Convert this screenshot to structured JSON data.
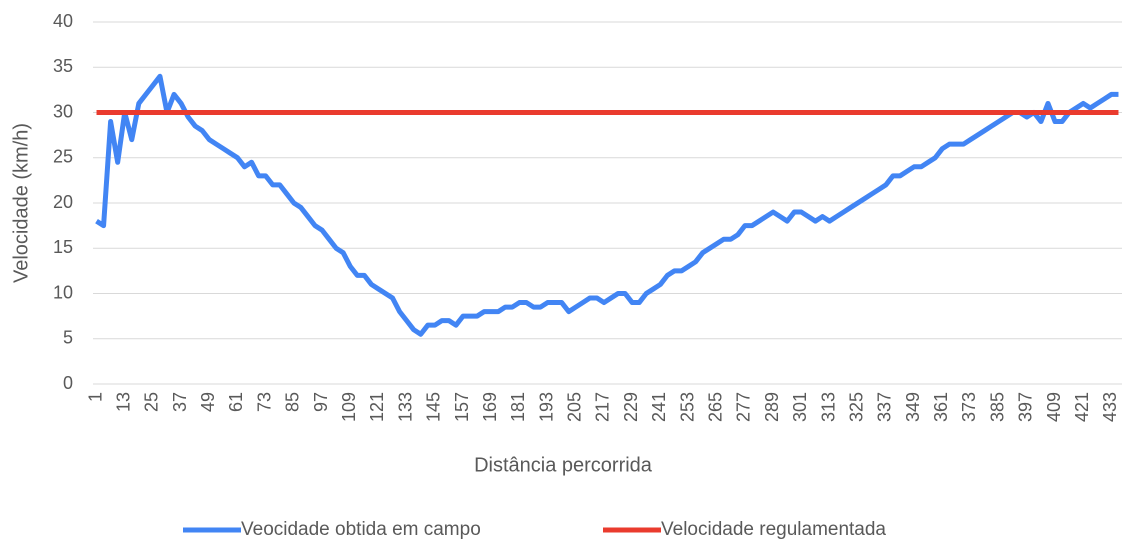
{
  "chart_data": {
    "type": "line",
    "x_label": "Distância percorrida",
    "y_label": "Velocidade (km/h)",
    "categories": [
      "1",
      null,
      null,
      null,
      "13",
      null,
      null,
      null,
      "25",
      null,
      null,
      null,
      "37",
      null,
      null,
      null,
      "49",
      null,
      null,
      null,
      "61",
      null,
      null,
      null,
      "73",
      null,
      null,
      null,
      "85",
      null,
      null,
      null,
      "97",
      null,
      null,
      null,
      "109",
      null,
      null,
      null,
      "121",
      null,
      null,
      null,
      "133",
      null,
      null,
      null,
      "145",
      null,
      null,
      null,
      "157",
      null,
      null,
      null,
      "169",
      null,
      null,
      null,
      "181",
      null,
      null,
      null,
      "193",
      null,
      null,
      null,
      "205",
      null,
      null,
      null,
      "217",
      null,
      null,
      null,
      "229",
      null,
      null,
      null,
      "241",
      null,
      null,
      null,
      "253",
      null,
      null,
      null,
      "265",
      null,
      null,
      null,
      "277",
      null,
      null,
      null,
      "289",
      null,
      null,
      null,
      "301",
      null,
      null,
      null,
      "313",
      null,
      null,
      null,
      "325",
      null,
      null,
      null,
      "337",
      null,
      null,
      null,
      "349",
      null,
      null,
      null,
      "361",
      null,
      null,
      null,
      "373",
      null,
      null,
      null,
      "385",
      null,
      null,
      null,
      "397",
      null,
      null,
      null,
      "409",
      null,
      null,
      null,
      "421",
      null,
      null,
      null,
      "433",
      null
    ],
    "series": [
      {
        "name": "Veocidade obtida em campo",
        "color": "#4285f4",
        "values": [
          18,
          17.5,
          29,
          24.5,
          30,
          27,
          31,
          32,
          33,
          34,
          30,
          32,
          31,
          29.5,
          28.5,
          28,
          27,
          26.5,
          26,
          25.5,
          25,
          24,
          24.5,
          23,
          23,
          22,
          22,
          21,
          20,
          19.5,
          18.5,
          17.5,
          17,
          16,
          15,
          14.5,
          13,
          12,
          12,
          11,
          10.5,
          10,
          9.5,
          8,
          7,
          6,
          5.5,
          6.5,
          6.5,
          7,
          7,
          6.5,
          7.5,
          7.5,
          7.5,
          8,
          8,
          8,
          8.5,
          8.5,
          9,
          9,
          8.5,
          8.5,
          9,
          9,
          9,
          8,
          8.5,
          9,
          9.5,
          9.5,
          9,
          9.5,
          10,
          10,
          9,
          9,
          10,
          10.5,
          11,
          12,
          12.5,
          12.5,
          13,
          13.5,
          14.5,
          15,
          15.5,
          16,
          16,
          16.5,
          17.5,
          17.5,
          18,
          18.5,
          19,
          18.5,
          18,
          19,
          19,
          18.5,
          18,
          18.5,
          18,
          18.5,
          19,
          19.5,
          20,
          20.5,
          21,
          21.5,
          22,
          23,
          23,
          23.5,
          24,
          24,
          24.5,
          25,
          26,
          26.5,
          26.5,
          26.5,
          27,
          27.5,
          28,
          28.5,
          29,
          29.5,
          30,
          30,
          29.5,
          30,
          29,
          31,
          29,
          29,
          30,
          30.5,
          31,
          30.5,
          31,
          31.5,
          32,
          32
        ]
      },
      {
        "name": "Velocidade regulamentada",
        "color": "#ea3b2e",
        "values": [
          30,
          30,
          30,
          30,
          30,
          30,
          30,
          30,
          30,
          30,
          30,
          30,
          30,
          30,
          30,
          30,
          30,
          30,
          30,
          30,
          30,
          30,
          30,
          30,
          30,
          30,
          30,
          30,
          30,
          30,
          30,
          30,
          30,
          30,
          30,
          30,
          30,
          30,
          30,
          30,
          30,
          30,
          30,
          30,
          30,
          30,
          30,
          30,
          30,
          30,
          30,
          30,
          30,
          30,
          30,
          30,
          30,
          30,
          30,
          30,
          30,
          30,
          30,
          30,
          30,
          30,
          30,
          30,
          30,
          30,
          30,
          30,
          30,
          30,
          30,
          30,
          30,
          30,
          30,
          30,
          30,
          30,
          30,
          30,
          30,
          30,
          30,
          30,
          30,
          30,
          30,
          30,
          30,
          30,
          30,
          30,
          30,
          30,
          30,
          30,
          30,
          30,
          30,
          30,
          30,
          30,
          30,
          30,
          30,
          30,
          30,
          30,
          30,
          30,
          30,
          30,
          30,
          30,
          30,
          30,
          30,
          30,
          30,
          30,
          30,
          30,
          30,
          30,
          30,
          30,
          30,
          30,
          30,
          30,
          30,
          30,
          30,
          30,
          30,
          30,
          30,
          30,
          30,
          30,
          30,
          30
        ]
      }
    ],
    "ylim": [
      0,
      40
    ],
    "yticks": [
      0,
      5,
      10,
      15,
      20,
      25,
      30,
      35,
      40
    ],
    "grid": true,
    "legend": "bottom"
  }
}
